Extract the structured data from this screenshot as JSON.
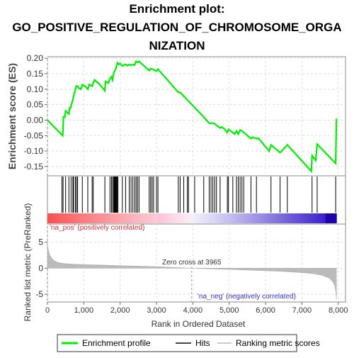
{
  "title_lines": [
    "Enrichment plot:",
    "GO_POSITIVE_REGULATION_OF_CHROMOSOME_ORGA",
    "NIZATION"
  ],
  "chart_data": {
    "type": "line",
    "enrichment_panel": {
      "ylabel": "Enrichment score (ES)",
      "ylim": [
        -0.18,
        0.205
      ],
      "yticks": [
        -0.15,
        -0.1,
        -0.05,
        0.0,
        0.05,
        0.1,
        0.15,
        0.2
      ],
      "ytick_labels": [
        "-0.15",
        "-0.10",
        "-0.05",
        "0.00",
        "0.05",
        "0.10",
        "0.15",
        "0.20"
      ],
      "grid": true,
      "series": [
        {
          "name": "Enrichment profile",
          "color": "#00ee00",
          "points": [
            [
              0,
              0.0
            ],
            [
              420,
              -0.05
            ],
            [
              440,
              0.01
            ],
            [
              480,
              0.01
            ],
            [
              500,
              0.03
            ],
            [
              590,
              0.02
            ],
            [
              610,
              0.04
            ],
            [
              640,
              0.04
            ],
            [
              670,
              0.055
            ],
            [
              700,
              0.065
            ],
            [
              720,
              0.08
            ],
            [
              750,
              0.09
            ],
            [
              790,
              0.11
            ],
            [
              830,
              0.11
            ],
            [
              850,
              0.105
            ],
            [
              920,
              0.1
            ],
            [
              960,
              0.115
            ],
            [
              1050,
              0.108
            ],
            [
              1110,
              0.1
            ],
            [
              1150,
              0.115
            ],
            [
              1230,
              0.11
            ],
            [
              1260,
              0.12
            ],
            [
              1300,
              0.13
            ],
            [
              1340,
              0.125
            ],
            [
              1400,
              0.12
            ],
            [
              1580,
              0.095
            ],
            [
              1600,
              0.125
            ],
            [
              1680,
              0.12
            ],
            [
              1720,
              0.135
            ],
            [
              1760,
              0.14
            ],
            [
              1790,
              0.13
            ],
            [
              1820,
              0.15
            ],
            [
              1850,
              0.16
            ],
            [
              1880,
              0.165
            ],
            [
              1900,
              0.175
            ],
            [
              1930,
              0.185
            ],
            [
              1960,
              0.18
            ],
            [
              2000,
              0.183
            ],
            [
              2060,
              0.175
            ],
            [
              2100,
              0.178
            ],
            [
              2150,
              0.18
            ],
            [
              2200,
              0.176
            ],
            [
              2250,
              0.18
            ],
            [
              2300,
              0.177
            ],
            [
              2350,
              0.18
            ],
            [
              2400,
              0.178
            ],
            [
              2440,
              0.19
            ],
            [
              2480,
              0.187
            ],
            [
              2520,
              0.19
            ],
            [
              2800,
              0.16
            ],
            [
              2840,
              0.167
            ],
            [
              2880,
              0.165
            ],
            [
              2920,
              0.163
            ],
            [
              3000,
              0.158
            ],
            [
              3040,
              0.165
            ],
            [
              3600,
              0.09
            ],
            [
              3650,
              0.09
            ],
            [
              4300,
              0.01
            ],
            [
              4450,
              -0.01
            ],
            [
              4550,
              -0.01
            ],
            [
              4580,
              -0.01
            ],
            [
              4600,
              -0.012
            ],
            [
              4750,
              -0.025
            ],
            [
              4800,
              -0.022
            ],
            [
              4880,
              -0.03
            ],
            [
              4950,
              -0.04
            ],
            [
              4980,
              -0.03
            ],
            [
              5100,
              -0.04
            ],
            [
              5150,
              -0.045
            ],
            [
              5200,
              -0.035
            ],
            [
              5250,
              -0.045
            ],
            [
              5300,
              -0.032
            ],
            [
              5350,
              -0.035
            ],
            [
              5600,
              -0.06
            ],
            [
              5640,
              -0.055
            ],
            [
              5750,
              -0.06
            ],
            [
              5800,
              -0.058
            ],
            [
              6100,
              -0.1
            ],
            [
              6150,
              -0.08
            ],
            [
              6400,
              -0.105
            ],
            [
              6600,
              -0.08
            ],
            [
              7260,
              -0.165
            ],
            [
              7280,
              -0.115
            ],
            [
              7380,
              -0.13
            ],
            [
              7420,
              -0.078
            ],
            [
              7930,
              -0.14
            ],
            [
              7950,
              0.005
            ]
          ]
        }
      ]
    },
    "hits_panel": {
      "hit_ranks": [
        400,
        430,
        500,
        590,
        650,
        700,
        720,
        770,
        800,
        830,
        960,
        1110,
        1230,
        1260,
        1580,
        1720,
        1760,
        1790,
        1820,
        1840,
        1860,
        1880,
        1900,
        1920,
        1940,
        2060,
        2150,
        2250,
        2300,
        2350,
        2400,
        2440,
        2480,
        2520,
        2800,
        2840,
        2880,
        2920,
        3000,
        3040,
        3600,
        3650,
        3750,
        3850,
        3880,
        4050,
        4300,
        4450,
        4500,
        4550,
        4600,
        4650,
        4750,
        4950,
        4980,
        5100,
        5200,
        5250,
        5300,
        5350,
        5400,
        5600,
        5750,
        6150,
        6400,
        6600,
        7280,
        7420,
        7930
      ]
    },
    "ranked_metric_panel": {
      "xlabel": "Rank in Ordered Dataset",
      "ylabel": "Ranked list metric (PreRanked)",
      "xlim": [
        0,
        8200
      ],
      "ylim": [
        -6.5,
        8.5
      ],
      "xticks": [
        0,
        1000,
        2000,
        3000,
        4000,
        5000,
        6000,
        7000,
        8000
      ],
      "xtick_labels": [
        "0",
        "1,000",
        "2,000",
        "3,000",
        "4,000",
        "5,000",
        "6,000",
        "7,000",
        "8,000"
      ],
      "yticks": [
        -5,
        0,
        5
      ],
      "ytick_labels": [
        "-5",
        "0",
        "5"
      ],
      "profile": [
        [
          0,
          4.8
        ],
        [
          25,
          3.5
        ],
        [
          60,
          2.6
        ],
        [
          120,
          1.9
        ],
        [
          200,
          1.4
        ],
        [
          300,
          1.1
        ],
        [
          450,
          0.9
        ],
        [
          700,
          0.78
        ],
        [
          1000,
          0.7
        ],
        [
          1500,
          0.6
        ],
        [
          2000,
          0.5
        ],
        [
          2500,
          0.4
        ],
        [
          3000,
          0.3
        ],
        [
          3500,
          0.16
        ],
        [
          3965,
          0.0
        ],
        [
          4500,
          -0.13
        ],
        [
          5000,
          -0.24
        ],
        [
          5500,
          -0.35
        ],
        [
          6000,
          -0.48
        ],
        [
          6500,
          -0.63
        ],
        [
          7000,
          -0.85
        ],
        [
          7300,
          -1.05
        ],
        [
          7550,
          -1.35
        ],
        [
          7750,
          -1.9
        ],
        [
          7850,
          -2.6
        ],
        [
          7900,
          -3.3
        ],
        [
          7930,
          -4.3
        ],
        [
          7950,
          -6.0
        ]
      ],
      "zero_cross_label": "Zero cross at 3965",
      "zero_cross": 3965,
      "pos_label": "'na_pos' (positively correlated)",
      "neg_label": "'na_neg' (negatively correlated)",
      "pos_color": "#cc3333",
      "neg_color": "#3333cc"
    },
    "legend": {
      "placement": "bottom",
      "entries": [
        "Enrichment profile",
        "Hits",
        "Ranking metric scores"
      ]
    }
  }
}
